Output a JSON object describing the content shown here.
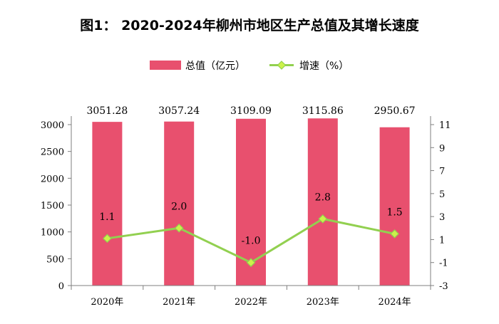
{
  "chart_data": {
    "type": "bar",
    "title": "图1：  2020-2024年柳州市地区生产总值及其增长速度",
    "categories": [
      "2020年",
      "2021年",
      "2022年",
      "2023年",
      "2024年"
    ],
    "series": [
      {
        "name": "总值（亿元）",
        "type": "bar",
        "axis": "left",
        "color": "#e8506e",
        "values": [
          3051.28,
          3057.24,
          3109.09,
          3115.86,
          2950.67
        ],
        "labels": [
          "3051.28",
          "3057.24",
          "3109.09",
          "3115.86",
          "2950.67"
        ]
      },
      {
        "name": "增速（%）",
        "type": "line",
        "axis": "right",
        "color": "#92d050",
        "marker": "diamond",
        "marker_color": "#ccf24a",
        "values": [
          1.1,
          2.0,
          -1.0,
          2.8,
          1.5
        ],
        "labels": [
          "1.1",
          "2.0",
          "-1.0",
          "2.8",
          "1.5"
        ]
      }
    ],
    "y_left": {
      "min": 0,
      "max": 3000,
      "ticks": [
        "0",
        "500",
        "1000",
        "1500",
        "2000",
        "2500",
        "3000"
      ]
    },
    "y_right": {
      "min": -3,
      "max": 11,
      "ticks": [
        "-3",
        "-1",
        "1",
        "3",
        "5",
        "7",
        "9",
        "11"
      ]
    },
    "legend_position": "top",
    "grid": false
  }
}
